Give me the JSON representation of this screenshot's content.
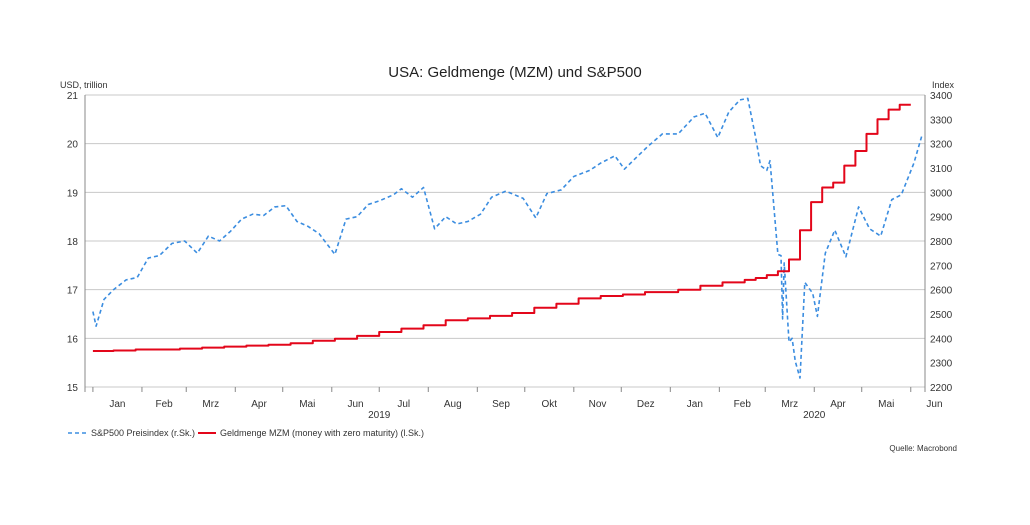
{
  "chart_data": {
    "type": "line",
    "title": "USA: Geldmenge (MZM) und S&P500",
    "left_axis": {
      "label": "USD, trillion",
      "ylim": [
        15,
        21
      ],
      "ticks": [
        "15",
        "16",
        "17",
        "18",
        "19",
        "20",
        "21"
      ]
    },
    "right_axis": {
      "label": "Index",
      "ylim": [
        2200,
        3400
      ],
      "ticks": [
        "2200",
        "2300",
        "2400",
        "2500",
        "2600",
        "2700",
        "2800",
        "2900",
        "3000",
        "3100",
        "3200",
        "3300",
        "3400"
      ]
    },
    "x_month_labels": [
      "Jan",
      "Feb",
      "Mrz",
      "Apr",
      "Mai",
      "Jun",
      "Jul",
      "Aug",
      "Sep",
      "Okt",
      "Nov",
      "Dez",
      "Jan",
      "Feb",
      "Mrz",
      "Apr",
      "Mai",
      "Jun"
    ],
    "x_year_labels": [
      "2019",
      "2020"
    ],
    "grid": true,
    "legend_position": "bottom-left",
    "series": [
      {
        "name": "S&P500 Preisindex (r.Sk.)",
        "axis": "right",
        "color": "#3b8de0",
        "dash": true,
        "points": [
          [
            "2019-01-01",
            2510
          ],
          [
            "2019-01-03",
            2450
          ],
          [
            "2019-01-08",
            2560
          ],
          [
            "2019-01-14",
            2600
          ],
          [
            "2019-01-22",
            2640
          ],
          [
            "2019-01-29",
            2650
          ],
          [
            "2019-02-05",
            2730
          ],
          [
            "2019-02-12",
            2740
          ],
          [
            "2019-02-20",
            2790
          ],
          [
            "2019-02-28",
            2800
          ],
          [
            "2019-03-08",
            2750
          ],
          [
            "2019-03-15",
            2820
          ],
          [
            "2019-03-22",
            2800
          ],
          [
            "2019-03-29",
            2840
          ],
          [
            "2019-04-05",
            2890
          ],
          [
            "2019-04-12",
            2910
          ],
          [
            "2019-04-19",
            2905
          ],
          [
            "2019-04-26",
            2940
          ],
          [
            "2019-05-03",
            2945
          ],
          [
            "2019-05-10",
            2880
          ],
          [
            "2019-05-17",
            2860
          ],
          [
            "2019-05-24",
            2830
          ],
          [
            "2019-06-03",
            2745
          ],
          [
            "2019-06-10",
            2890
          ],
          [
            "2019-06-17",
            2900
          ],
          [
            "2019-06-24",
            2950
          ],
          [
            "2019-07-01",
            2965
          ],
          [
            "2019-07-10",
            2990
          ],
          [
            "2019-07-15",
            3015
          ],
          [
            "2019-07-22",
            2980
          ],
          [
            "2019-07-29",
            3020
          ],
          [
            "2019-08-05",
            2850
          ],
          [
            "2019-08-12",
            2900
          ],
          [
            "2019-08-19",
            2870
          ],
          [
            "2019-08-26",
            2880
          ],
          [
            "2019-09-03",
            2910
          ],
          [
            "2019-09-10",
            2980
          ],
          [
            "2019-09-19",
            3005
          ],
          [
            "2019-09-30",
            2975
          ],
          [
            "2019-10-08",
            2895
          ],
          [
            "2019-10-15",
            2995
          ],
          [
            "2019-10-24",
            3010
          ],
          [
            "2019-11-01",
            3065
          ],
          [
            "2019-11-11",
            3090
          ],
          [
            "2019-11-18",
            3120
          ],
          [
            "2019-11-27",
            3150
          ],
          [
            "2019-12-03",
            3095
          ],
          [
            "2019-12-10",
            3140
          ],
          [
            "2019-12-18",
            3190
          ],
          [
            "2019-12-27",
            3240
          ],
          [
            "2020-01-06",
            3240
          ],
          [
            "2020-01-16",
            3310
          ],
          [
            "2020-01-23",
            3325
          ],
          [
            "2020-01-31",
            3225
          ],
          [
            "2020-02-07",
            3330
          ],
          [
            "2020-02-14",
            3380
          ],
          [
            "2020-02-19",
            3386
          ],
          [
            "2020-02-24",
            3225
          ],
          [
            "2020-02-27",
            3110
          ],
          [
            "2020-03-02",
            3090
          ],
          [
            "2020-03-04",
            3130
          ],
          [
            "2020-03-09",
            2745
          ],
          [
            "2020-03-11",
            2740
          ],
          [
            "2020-03-12",
            2480
          ],
          [
            "2020-03-13",
            2710
          ],
          [
            "2020-03-16",
            2385
          ],
          [
            "2020-03-18",
            2400
          ],
          [
            "2020-03-20",
            2305
          ],
          [
            "2020-03-23",
            2237
          ],
          [
            "2020-03-26",
            2630
          ],
          [
            "2020-03-31",
            2585
          ],
          [
            "2020-04-03",
            2490
          ],
          [
            "2020-04-08",
            2750
          ],
          [
            "2020-04-14",
            2845
          ],
          [
            "2020-04-21",
            2735
          ],
          [
            "2020-04-29",
            2940
          ],
          [
            "2020-05-06",
            2850
          ],
          [
            "2020-05-13",
            2820
          ],
          [
            "2020-05-20",
            2970
          ],
          [
            "2020-05-26",
            2990
          ],
          [
            "2020-06-03",
            3120
          ],
          [
            "2020-06-08",
            3232
          ]
        ]
      },
      {
        "name": "Geldmenge MZM (money with zero maturity) (l.Sk.)",
        "axis": "left",
        "color": "#e3061a",
        "dash": false,
        "points": [
          [
            "2019-01-01",
            15.74
          ],
          [
            "2019-01-14",
            15.75
          ],
          [
            "2019-01-28",
            15.77
          ],
          [
            "2019-02-11",
            15.77
          ],
          [
            "2019-02-25",
            15.79
          ],
          [
            "2019-03-11",
            15.81
          ],
          [
            "2019-03-25",
            15.83
          ],
          [
            "2019-04-08",
            15.85
          ],
          [
            "2019-04-22",
            15.87
          ],
          [
            "2019-05-06",
            15.9
          ],
          [
            "2019-05-20",
            15.95
          ],
          [
            "2019-06-03",
            15.99
          ],
          [
            "2019-06-17",
            16.05
          ],
          [
            "2019-07-01",
            16.13
          ],
          [
            "2019-07-15",
            16.2
          ],
          [
            "2019-07-29",
            16.27
          ],
          [
            "2019-08-12",
            16.37
          ],
          [
            "2019-08-26",
            16.41
          ],
          [
            "2019-09-09",
            16.46
          ],
          [
            "2019-09-23",
            16.52
          ],
          [
            "2019-10-07",
            16.63
          ],
          [
            "2019-10-21",
            16.71
          ],
          [
            "2019-11-04",
            16.82
          ],
          [
            "2019-11-18",
            16.87
          ],
          [
            "2019-12-02",
            16.9
          ],
          [
            "2019-12-16",
            16.95
          ],
          [
            "2020-01-06",
            17.0
          ],
          [
            "2020-01-20",
            17.08
          ],
          [
            "2020-02-03",
            17.15
          ],
          [
            "2020-02-17",
            17.2
          ],
          [
            "2020-02-24",
            17.24
          ],
          [
            "2020-03-02",
            17.3
          ],
          [
            "2020-03-09",
            17.38
          ],
          [
            "2020-03-16",
            17.62
          ],
          [
            "2020-03-23",
            18.22
          ],
          [
            "2020-03-30",
            18.8
          ],
          [
            "2020-04-06",
            19.1
          ],
          [
            "2020-04-13",
            19.2
          ],
          [
            "2020-04-20",
            19.55
          ],
          [
            "2020-04-27",
            19.85
          ],
          [
            "2020-05-04",
            20.2
          ],
          [
            "2020-05-11",
            20.5
          ],
          [
            "2020-05-18",
            20.7
          ],
          [
            "2020-05-25",
            20.8
          ],
          [
            "2020-06-01",
            20.8
          ]
        ]
      }
    ],
    "source": "Quelle: Macrobond"
  }
}
